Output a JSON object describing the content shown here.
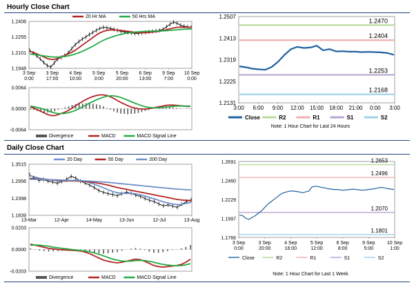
{
  "hourly_title": "Hourly Close Chart",
  "daily_title": "Daily Close Chart",
  "note_hourly": "Note: 1 Hour Chart for Last 24 Hours",
  "note_daily": "Note: 1 Hour Chart for Last 1 Week",
  "colors": {
    "price": "#111111",
    "ma_short": "#b22222",
    "ma_long": "#22aa44",
    "ma_200": "#22aa44",
    "ma_20": "#6b8fc8",
    "close": "#1f5f9f",
    "r2": "#b7d99a",
    "r1": "#f0b0b0",
    "s1": "#b7a6d1",
    "s2": "#9ed3ea",
    "divergence": "#555555",
    "rule": "#1f3f7f"
  },
  "chart_data": [
    {
      "id": "hourly_price",
      "type": "line",
      "legend": [
        "20 Hr MA",
        "50 Hrs MA"
      ],
      "x_ticks": [
        "3 Sep\n0:00",
        "3 Sep\n17:00",
        "4 Sep\n10:00",
        "5 Sep\n3:00",
        "5 Sep\n20:00",
        "6 Sep\n13:00",
        "9 Sep\n7:00",
        "10 Sep\n0:00"
      ],
      "y_ticks": [
        "1.2408",
        "1.2255",
        "1.2101",
        "1.1948"
      ],
      "ylim": [
        1.1948,
        1.2408
      ],
      "series": [
        {
          "name": "Price",
          "values": [
            1.2125,
            1.2095,
            1.207,
            1.204,
            1.2005,
            1.1975,
            1.196,
            1.2,
            1.204,
            1.2055,
            1.2075,
            1.21,
            1.214,
            1.218,
            1.221,
            1.2235,
            1.2255,
            1.228,
            1.23,
            1.232,
            1.234,
            1.235,
            1.2345,
            1.234,
            1.233,
            1.232,
            1.231,
            1.2305,
            1.23,
            1.2295,
            1.229,
            1.229,
            1.2295,
            1.23,
            1.2305,
            1.231,
            1.2315,
            1.232,
            1.233,
            1.2355,
            1.238,
            1.24,
            1.239,
            1.237,
            1.236,
            1.2355,
            1.235
          ]
        },
        {
          "name": "20 Hr MA",
          "values": [
            1.2115,
            1.2105,
            1.209,
            1.2075,
            1.206,
            1.2045,
            1.2035,
            1.2035,
            1.2045,
            1.206,
            1.2075,
            1.209,
            1.2105,
            1.2125,
            1.215,
            1.2175,
            1.22,
            1.2225,
            1.225,
            1.2275,
            1.2295,
            1.231,
            1.232,
            1.2325,
            1.2325,
            1.2322,
            1.2318,
            1.2314,
            1.231,
            1.2305,
            1.23,
            1.2298,
            1.2297,
            1.2297,
            1.23,
            1.2303,
            1.2307,
            1.2312,
            1.2318,
            1.2326,
            1.2335,
            1.2343,
            1.235,
            1.2352,
            1.2352,
            1.2351,
            1.235
          ]
        },
        {
          "name": "50 Hrs MA",
          "values": [
            1.209,
            1.2085,
            1.208,
            1.2075,
            1.207,
            1.2065,
            1.206,
            1.2058,
            1.2058,
            1.206,
            1.2065,
            1.207,
            1.2078,
            1.2088,
            1.21,
            1.2115,
            1.213,
            1.2148,
            1.2165,
            1.2185,
            1.2205,
            1.2222,
            1.2238,
            1.225,
            1.2262,
            1.2272,
            1.228,
            1.2288,
            1.2294,
            1.2299,
            1.2303,
            1.2306,
            1.2308,
            1.231,
            1.2311,
            1.2312,
            1.2313,
            1.2314,
            1.2315,
            1.2317,
            1.232,
            1.2323,
            1.2326,
            1.2329,
            1.2331,
            1.2333,
            1.2335
          ]
        }
      ]
    },
    {
      "id": "hourly_macd",
      "type": "line",
      "legend": [
        "Divergence",
        "MACD",
        "MACD Signal Line"
      ],
      "y_ticks": [
        "0.0064",
        "0.0000",
        "-0.0064"
      ],
      "ylim": [
        -0.0064,
        0.0064
      ],
      "series": [
        {
          "name": "MACD",
          "values": [
            0.0005,
            0.0002,
            -0.0003,
            -0.0008,
            -0.0013,
            -0.0018,
            -0.0021,
            -0.0021,
            -0.0018,
            -0.0014,
            -0.001,
            -0.0005,
            0.0002,
            0.0009,
            0.0016,
            0.0022,
            0.0028,
            0.0033,
            0.0037,
            0.004,
            0.0042,
            0.0042,
            0.004,
            0.0036,
            0.0031,
            0.0025,
            0.0019,
            0.0014,
            0.0009,
            0.0005,
            0.0002,
            0.0,
            -0.0001,
            -0.0001,
            0.0,
            0.0002,
            0.0004,
            0.0006,
            0.0008,
            0.001,
            0.0011,
            0.0011,
            0.001,
            0.0009,
            0.0008,
            0.0007,
            0.0007
          ]
        },
        {
          "name": "MACD Signal Line",
          "values": [
            0.0008,
            0.0006,
            0.0004,
            0.0001,
            -0.0002,
            -0.0006,
            -0.001,
            -0.0013,
            -0.0015,
            -0.0015,
            -0.0014,
            -0.0012,
            -0.0009,
            -0.0005,
            0.0,
            0.0006,
            0.0011,
            0.0017,
            0.0022,
            0.0027,
            0.0031,
            0.0035,
            0.0038,
            0.0039,
            0.0039,
            0.0037,
            0.0034,
            0.003,
            0.0026,
            0.0021,
            0.0017,
            0.0013,
            0.0009,
            0.0006,
            0.0004,
            0.0003,
            0.0003,
            0.0003,
            0.0004,
            0.0005,
            0.0006,
            0.0007,
            0.0008,
            0.0008,
            0.0008,
            0.0008,
            0.0008
          ]
        },
        {
          "name": "Divergence",
          "values": [
            -0.0003,
            -0.0004,
            -0.0007,
            -0.0009,
            -0.0011,
            -0.0012,
            -0.0011,
            -0.0008,
            -0.0003,
            0.0001,
            0.0004,
            0.0007,
            0.0011,
            0.0014,
            0.0016,
            0.0016,
            0.0017,
            0.0016,
            0.0015,
            0.0013,
            0.0011,
            0.0007,
            0.0002,
            -0.0003,
            -0.0008,
            -0.0012,
            -0.0015,
            -0.0016,
            -0.0017,
            -0.0016,
            -0.0015,
            -0.0013,
            -0.001,
            -0.0007,
            -0.0004,
            -0.0001,
            0.0001,
            0.0003,
            0.0004,
            0.0005,
            0.0005,
            0.0004,
            0.0002,
            0.0001,
            0.0,
            -0.0001,
            -0.0001
          ]
        }
      ]
    },
    {
      "id": "hourly_pivot",
      "type": "line",
      "x_ticks": [
        "3:00",
        "6:00",
        "9:00",
        "12:00",
        "15:00",
        "18:00",
        "21:00",
        "0:00",
        "3:00"
      ],
      "y_ticks": [
        "1.2507",
        "1.2413",
        "1.2319",
        "1.2225",
        "1.2131"
      ],
      "ylim": [
        1.2131,
        1.2507
      ],
      "levels": [
        {
          "name": "R2",
          "value": 1.247,
          "label": "1.2470"
        },
        {
          "name": "R1",
          "value": 1.2404,
          "label": "1.2404"
        },
        {
          "name": "S1",
          "value": 1.2253,
          "label": "1.2253"
        },
        {
          "name": "S2",
          "value": 1.2168,
          "label": "1.2168"
        }
      ],
      "legend": [
        "Close",
        "R2",
        "R1",
        "S1",
        "S2"
      ],
      "series": [
        {
          "name": "Close",
          "values": [
            1.229,
            1.2286,
            1.228,
            1.2277,
            1.2275,
            1.2287,
            1.231,
            1.234,
            1.2365,
            1.2375,
            1.237,
            1.2372,
            1.238,
            1.236,
            1.2365,
            1.2355,
            1.2356,
            1.2354,
            1.2354,
            1.2352,
            1.2353,
            1.2352,
            1.2351,
            1.2348,
            1.234
          ]
        }
      ]
    },
    {
      "id": "daily_price",
      "type": "line",
      "legend": [
        "20 Day",
        "50 Day",
        "200 Day"
      ],
      "x_ticks": [
        "13-Mar",
        "12-Apr",
        "14-May",
        "13-Jun",
        "12-Jul",
        "13-Aug"
      ],
      "y_ticks": [
        "1.3515",
        "1.2956",
        "1.2398",
        "1.1839"
      ],
      "ylim": [
        1.1839,
        1.3515
      ],
      "series": [
        {
          "name": "Price",
          "values": [
            1.317,
            1.306,
            1.298,
            1.301,
            1.296,
            1.293,
            1.289,
            1.295,
            1.302,
            1.312,
            1.306,
            1.296,
            1.29,
            1.283,
            1.275,
            1.265,
            1.259,
            1.255,
            1.252,
            1.248,
            1.255,
            1.26,
            1.256,
            1.25,
            1.246,
            1.239,
            1.233,
            1.229,
            1.221,
            1.215,
            1.218,
            1.214,
            1.21,
            1.22,
            1.229,
            1.235
          ]
        },
        {
          "name": "20 Day",
          "values": [
            1.315,
            1.31,
            1.306,
            1.303,
            1.301,
            1.299,
            1.297,
            1.296,
            1.296,
            1.298,
            1.299,
            1.298,
            1.295,
            1.291,
            1.286,
            1.28,
            1.274,
            1.268,
            1.262,
            1.258,
            1.256,
            1.256,
            1.256,
            1.254,
            1.251,
            1.247,
            1.242,
            1.238,
            1.233,
            1.228,
            1.224,
            1.221,
            1.219,
            1.22,
            1.223,
            1.227
          ]
        },
        {
          "name": "50 Day",
          "values": [
            1.305,
            1.304,
            1.303,
            1.302,
            1.301,
            1.3,
            1.299,
            1.298,
            1.2975,
            1.297,
            1.2965,
            1.296,
            1.295,
            1.2935,
            1.2915,
            1.289,
            1.286,
            1.283,
            1.279,
            1.275,
            1.272,
            1.269,
            1.266,
            1.263,
            1.26,
            1.257,
            1.254,
            1.251,
            1.248,
            1.245,
            1.242,
            1.239,
            1.236,
            1.234,
            1.233,
            1.232
          ]
        },
        {
          "name": "200 Day",
          "values": [
            1.302,
            1.302,
            1.302,
            1.3015,
            1.301,
            1.3005,
            1.3,
            1.2995,
            1.299,
            1.2985,
            1.298,
            1.2975,
            1.297,
            1.296,
            1.295,
            1.294,
            1.293,
            1.292,
            1.2905,
            1.289,
            1.2875,
            1.286,
            1.2845,
            1.283,
            1.2815,
            1.28,
            1.2785,
            1.277,
            1.2755,
            1.274,
            1.2725,
            1.271,
            1.27,
            1.269,
            1.268,
            1.2675
          ]
        }
      ]
    },
    {
      "id": "daily_macd",
      "type": "line",
      "legend": [
        "Divergence",
        "MACD",
        "MACD Signal Line"
      ],
      "y_ticks": [
        "0.0203",
        "0.0000",
        "-0.0203"
      ],
      "ylim": [
        -0.0203,
        0.0203
      ],
      "series": [
        {
          "name": "MACD",
          "values": [
            0.005,
            0.004,
            0.003,
            0.002,
            0.001,
            0.0005,
            0.0,
            -0.0002,
            -0.0005,
            -0.0008,
            -0.001,
            -0.0015,
            -0.0025,
            -0.004,
            -0.006,
            -0.008,
            -0.01,
            -0.011,
            -0.012,
            -0.0125,
            -0.012,
            -0.011,
            -0.01,
            -0.009,
            -0.0095,
            -0.011,
            -0.013,
            -0.015,
            -0.016,
            -0.0165,
            -0.016,
            -0.0155,
            -0.015,
            -0.014,
            -0.012,
            -0.009
          ]
        },
        {
          "name": "MACD Signal Line",
          "values": [
            0.004,
            0.0042,
            0.004,
            0.0035,
            0.003,
            0.0022,
            0.0015,
            0.001,
            0.0005,
            0.0,
            -0.0005,
            -0.001,
            -0.0015,
            -0.0022,
            -0.0032,
            -0.0045,
            -0.006,
            -0.0075,
            -0.009,
            -0.01,
            -0.0108,
            -0.011,
            -0.0108,
            -0.0104,
            -0.0102,
            -0.0104,
            -0.011,
            -0.012,
            -0.013,
            -0.014,
            -0.0145,
            -0.015,
            -0.0152,
            -0.015,
            -0.0144,
            -0.0132
          ]
        },
        {
          "name": "Divergence",
          "values": [
            0.001,
            -0.0002,
            -0.001,
            -0.0015,
            -0.002,
            -0.0017,
            -0.0015,
            -0.0012,
            -0.001,
            -0.0008,
            -0.0005,
            -0.0005,
            -0.001,
            -0.0018,
            -0.0028,
            -0.0035,
            -0.004,
            -0.0035,
            -0.003,
            -0.0025,
            -0.0012,
            0.0,
            0.0008,
            0.0014,
            0.0007,
            -0.0006,
            -0.002,
            -0.003,
            -0.003,
            -0.0025,
            -0.0015,
            -0.0005,
            0.0002,
            0.001,
            0.0024,
            0.0042
          ]
        }
      ]
    },
    {
      "id": "daily_pivot",
      "type": "line",
      "x_ticks": [
        "3 Sep\n0:00",
        "3 Sep\n20:00",
        "4 Sep\n16:00",
        "5 Sep\n12:00",
        "6 Sep\n8:00",
        "9 Sep\n5:00",
        "10 Sep\n1:00"
      ],
      "y_ticks": [
        "1.2691",
        "1.2460",
        "1.2229",
        "1.1997",
        "1.1766"
      ],
      "ylim": [
        1.1766,
        1.2691
      ],
      "levels": [
        {
          "name": "R2",
          "value": 1.2653,
          "label": "1.2653"
        },
        {
          "name": "R1",
          "value": 1.2496,
          "label": "1.2496"
        },
        {
          "name": "S1",
          "value": 1.207,
          "label": "1.2070"
        },
        {
          "name": "S2",
          "value": 1.1801,
          "label": "1.1801"
        }
      ],
      "legend": [
        "Close",
        "R2",
        "R1",
        "S1",
        "S2"
      ],
      "series": [
        {
          "name": "Close",
          "values": [
            1.204,
            1.203,
            1.2,
            1.1985,
            1.201,
            1.203,
            1.206,
            1.209,
            1.213,
            1.217,
            1.22,
            1.223,
            1.226,
            1.229,
            1.231,
            1.232,
            1.233,
            1.233,
            1.2325,
            1.232,
            1.231,
            1.232,
            1.233,
            1.238,
            1.239,
            1.2385,
            1.2375,
            1.237,
            1.236,
            1.2355,
            1.235,
            1.235,
            1.2345,
            1.234,
            1.2345,
            1.235,
            1.2355,
            1.235,
            1.2345,
            1.234,
            1.2345,
            1.235,
            1.2355,
            1.236,
            1.237,
            1.2375,
            1.237,
            1.236,
            1.2355,
            1.235
          ]
        }
      ]
    }
  ]
}
